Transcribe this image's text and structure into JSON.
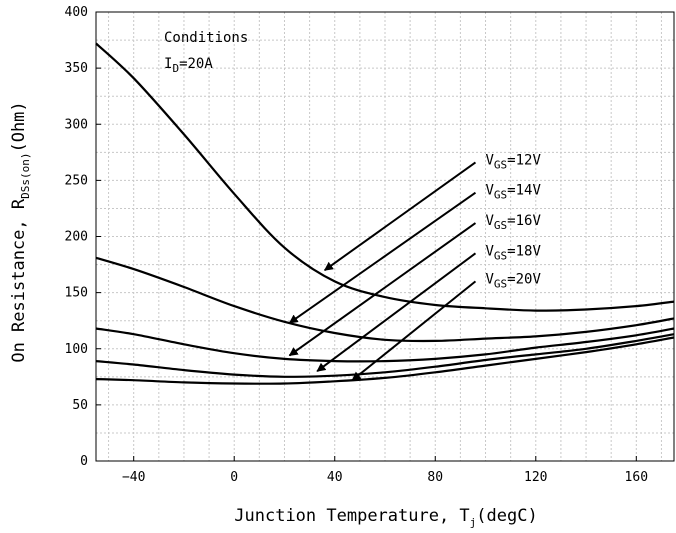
{
  "chart_data": {
    "type": "line",
    "xlabel": {
      "main": "Junction Temperature, T",
      "sub": "j",
      "tail": "(degC)"
    },
    "ylabel": {
      "main": "On Resistance, R",
      "sub": "DSs(on)",
      "tail": "(Ohm)"
    },
    "xlim": [
      -55,
      175
    ],
    "ylim": [
      0,
      400
    ],
    "x_ticks": [
      -40,
      0,
      40,
      80,
      120,
      160
    ],
    "y_ticks": [
      0,
      50,
      100,
      150,
      200,
      250,
      300,
      350,
      400
    ],
    "grid": true,
    "conditions": {
      "title": "Conditions",
      "line_main": "I",
      "line_sub": "D",
      "line_tail": "=20A"
    },
    "series": [
      {
        "name": "V_GS=12V",
        "label_main": "V",
        "label_sub": "GS",
        "label_tail": "=12V",
        "arrow_from": [
          96,
          266
        ],
        "arrow_to": [
          36,
          170
        ],
        "points": [
          [
            -55,
            372
          ],
          [
            -40,
            341
          ],
          [
            -20,
            291
          ],
          [
            0,
            238
          ],
          [
            20,
            190
          ],
          [
            40,
            160
          ],
          [
            60,
            146
          ],
          [
            80,
            139
          ],
          [
            100,
            136
          ],
          [
            120,
            134
          ],
          [
            140,
            135
          ],
          [
            160,
            138
          ],
          [
            175,
            142
          ]
        ]
      },
      {
        "name": "V_GS=14V",
        "label_main": "V",
        "label_sub": "GS",
        "label_tail": "=14V",
        "arrow_from": [
          96,
          239
        ],
        "arrow_to": [
          22,
          123
        ],
        "points": [
          [
            -55,
            181
          ],
          [
            -40,
            171
          ],
          [
            -20,
            155
          ],
          [
            0,
            138
          ],
          [
            20,
            124
          ],
          [
            40,
            114
          ],
          [
            60,
            108
          ],
          [
            80,
            107
          ],
          [
            100,
            109
          ],
          [
            120,
            111
          ],
          [
            140,
            115
          ],
          [
            160,
            121
          ],
          [
            175,
            127
          ]
        ]
      },
      {
        "name": "V_GS=16V",
        "label_main": "V",
        "label_sub": "GS",
        "label_tail": "=16V",
        "arrow_from": [
          96,
          212
        ],
        "arrow_to": [
          22,
          94
        ],
        "points": [
          [
            -55,
            118
          ],
          [
            -40,
            113
          ],
          [
            -20,
            104
          ],
          [
            0,
            96
          ],
          [
            20,
            91
          ],
          [
            40,
            89
          ],
          [
            60,
            89
          ],
          [
            80,
            91
          ],
          [
            100,
            95
          ],
          [
            120,
            101
          ],
          [
            140,
            106
          ],
          [
            160,
            112
          ],
          [
            175,
            118
          ]
        ]
      },
      {
        "name": "V_GS=18V",
        "label_main": "V",
        "label_sub": "GS",
        "label_tail": "=18V",
        "arrow_from": [
          96,
          185
        ],
        "arrow_to": [
          33,
          80
        ],
        "points": [
          [
            -55,
            89
          ],
          [
            -40,
            86
          ],
          [
            -20,
            81
          ],
          [
            0,
            77
          ],
          [
            20,
            75
          ],
          [
            40,
            76
          ],
          [
            60,
            79
          ],
          [
            80,
            84
          ],
          [
            100,
            90
          ],
          [
            120,
            95
          ],
          [
            140,
            100
          ],
          [
            160,
            107
          ],
          [
            175,
            113
          ]
        ]
      },
      {
        "name": "V_GS=20V",
        "label_main": "V",
        "label_sub": "GS",
        "label_tail": "=20V",
        "arrow_from": [
          96,
          160
        ],
        "arrow_to": [
          47,
          72
        ],
        "points": [
          [
            -55,
            73
          ],
          [
            -40,
            72
          ],
          [
            -20,
            70
          ],
          [
            0,
            69
          ],
          [
            20,
            69
          ],
          [
            40,
            71
          ],
          [
            60,
            74
          ],
          [
            80,
            79
          ],
          [
            100,
            85
          ],
          [
            120,
            91
          ],
          [
            140,
            97
          ],
          [
            160,
            104
          ],
          [
            175,
            110
          ]
        ]
      }
    ]
  }
}
